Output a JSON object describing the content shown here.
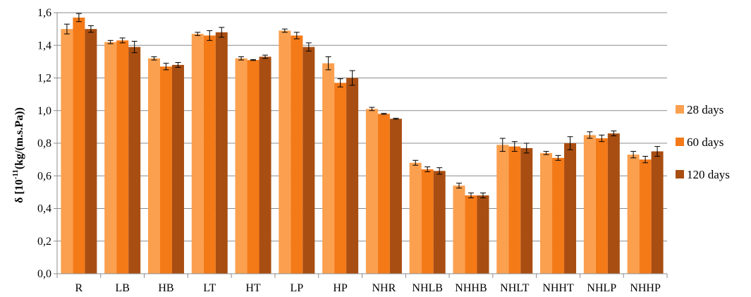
{
  "chart_data": {
    "type": "bar",
    "ylabel_main": "δ  [10",
    "ylabel_sup": "-11",
    "ylabel_rest": "(kg/(m.s.Pa))",
    "ylim": [
      0,
      1.6
    ],
    "yticks": [
      0,
      0.2,
      0.4,
      0.6,
      0.8,
      1.0,
      1.2,
      1.4,
      1.6
    ],
    "ytick_labels": [
      "0,0",
      "0,2",
      "0,4",
      "0,6",
      "0,8",
      "1,0",
      "1,2",
      "1,4",
      "1,6"
    ],
    "grid": true,
    "legend_position": "right",
    "categories": [
      "R",
      "LB",
      "HB",
      "LT",
      "HT",
      "LP",
      "HP",
      "NHR",
      "NHLB",
      "NHHB",
      "NHLT",
      "NHHT",
      "NHLP",
      "NHHP"
    ],
    "series": [
      {
        "name": "28 days",
        "color": "#FBA04F",
        "values": [
          1.5,
          1.42,
          1.32,
          1.47,
          1.32,
          1.49,
          1.29,
          1.01,
          0.68,
          0.54,
          0.79,
          0.74,
          0.85,
          0.73
        ],
        "errors": [
          0.03,
          0.01,
          0.01,
          0.01,
          0.01,
          0.01,
          0.04,
          0.01,
          0.015,
          0.015,
          0.04,
          0.01,
          0.02,
          0.02
        ]
      },
      {
        "name": "60 days",
        "color": "#F47A18",
        "values": [
          1.57,
          1.43,
          1.27,
          1.46,
          1.31,
          1.46,
          1.17,
          0.98,
          0.64,
          0.48,
          0.78,
          0.71,
          0.83,
          0.7
        ],
        "errors": [
          0.025,
          0.015,
          0.02,
          0.03,
          0.003,
          0.02,
          0.025,
          0.003,
          0.015,
          0.015,
          0.03,
          0.015,
          0.02,
          0.02
        ]
      },
      {
        "name": "120 days",
        "color": "#A94E12",
        "values": [
          1.5,
          1.39,
          1.28,
          1.48,
          1.33,
          1.39,
          1.2,
          0.95,
          0.63,
          0.48,
          0.77,
          0.8,
          0.86,
          0.75
        ],
        "errors": [
          0.02,
          0.035,
          0.015,
          0.03,
          0.01,
          0.025,
          0.045,
          0.003,
          0.02,
          0.015,
          0.03,
          0.04,
          0.015,
          0.03
        ]
      }
    ]
  }
}
